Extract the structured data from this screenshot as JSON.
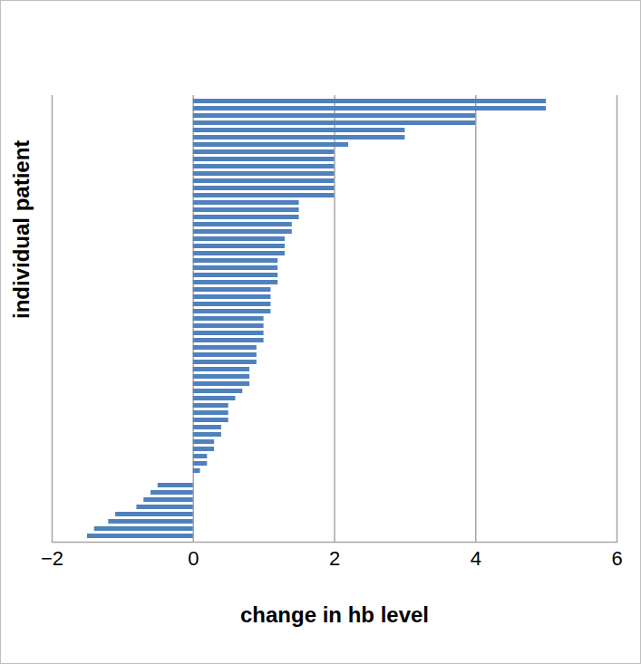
{
  "chart_data": {
    "type": "bar",
    "orientation": "horizontal",
    "xlabel": "change in hb level",
    "ylabel": "individual patient",
    "categories": [
      null,
      null,
      null,
      null,
      null,
      null,
      null,
      null,
      null,
      null,
      null,
      null,
      null,
      null,
      null,
      null,
      null,
      null,
      null,
      null,
      null,
      null,
      null,
      null,
      null,
      null,
      null,
      null,
      null,
      null,
      null,
      null,
      null,
      null,
      null,
      null,
      null,
      null,
      null,
      null,
      null,
      null,
      null,
      null,
      null,
      null,
      null,
      null,
      null,
      null,
      null,
      null,
      null,
      null,
      null,
      null,
      null,
      null,
      null,
      null,
      null
    ],
    "values": [
      5,
      5,
      4,
      4,
      3,
      3,
      2.2,
      2,
      2,
      2,
      2,
      2,
      2,
      2,
      1.5,
      1.5,
      1.5,
      1.4,
      1.4,
      1.3,
      1.3,
      1.3,
      1.2,
      1.2,
      1.2,
      1.2,
      1.1,
      1.1,
      1.1,
      1.1,
      1,
      1,
      1,
      1,
      0.9,
      0.9,
      0.9,
      0.8,
      0.8,
      0.8,
      0.7,
      0.6,
      0.5,
      0.5,
      0.5,
      0.4,
      0.4,
      0.3,
      0.3,
      0.2,
      0.2,
      0.1,
      0,
      -0.5,
      -0.6,
      -0.7,
      -0.8,
      -1.1,
      -1.2,
      -1.4,
      -1.5
    ],
    "color": "#4f81bd",
    "xlim": [
      -2,
      6
    ],
    "xticks": [
      -2,
      0,
      2,
      4,
      6
    ],
    "grid": true,
    "tick_labels": "x"
  }
}
